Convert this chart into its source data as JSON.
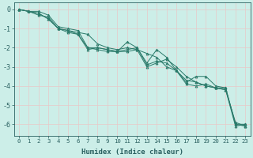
{
  "xlabel": "Humidex (Indice chaleur)",
  "ylabel": "",
  "background_color": "#cceee8",
  "grid_color": "#e8c8c8",
  "line_color": "#2a7a6a",
  "xlim": [
    -0.5,
    23.5
  ],
  "ylim": [
    -6.6,
    0.35
  ],
  "xticks": [
    0,
    1,
    2,
    3,
    4,
    5,
    6,
    7,
    8,
    9,
    10,
    11,
    12,
    13,
    14,
    15,
    16,
    17,
    18,
    19,
    20,
    21,
    22,
    23
  ],
  "yticks": [
    0,
    -1,
    -2,
    -3,
    -4,
    -5,
    -6
  ],
  "series": [
    [
      0.0,
      -0.1,
      -0.1,
      -0.3,
      -0.9,
      -1.0,
      -1.1,
      -2.0,
      -2.1,
      -2.2,
      -2.2,
      -1.7,
      -2.0,
      -2.8,
      -2.1,
      -2.5,
      -3.2,
      -3.8,
      -3.5,
      -3.5,
      -4.0,
      -4.1,
      -6.0,
      -6.1
    ],
    [
      0.0,
      -0.1,
      -0.2,
      -0.5,
      -1.0,
      -1.1,
      -1.2,
      -1.3,
      -1.8,
      -2.0,
      -2.1,
      -2.0,
      -2.1,
      -2.3,
      -2.5,
      -3.0,
      -3.2,
      -3.7,
      -3.8,
      -4.0,
      -4.1,
      -4.2,
      -5.9,
      -6.1
    ],
    [
      0.0,
      -0.1,
      -0.2,
      -0.5,
      -1.0,
      -1.2,
      -1.3,
      -2.1,
      -2.0,
      -2.1,
      -2.2,
      -2.2,
      -2.1,
      -3.0,
      -2.8,
      -2.6,
      -3.0,
      -3.5,
      -3.8,
      -4.0,
      -4.1,
      -4.2,
      -6.1,
      -6.0
    ],
    [
      0.0,
      -0.1,
      -0.3,
      -0.4,
      -1.0,
      -1.1,
      -1.3,
      -2.0,
      -2.0,
      -2.1,
      -2.2,
      -2.1,
      -2.0,
      -2.9,
      -2.7,
      -2.8,
      -3.2,
      -3.9,
      -4.0,
      -3.9,
      -4.1,
      -4.1,
      -6.0,
      -6.0
    ]
  ]
}
